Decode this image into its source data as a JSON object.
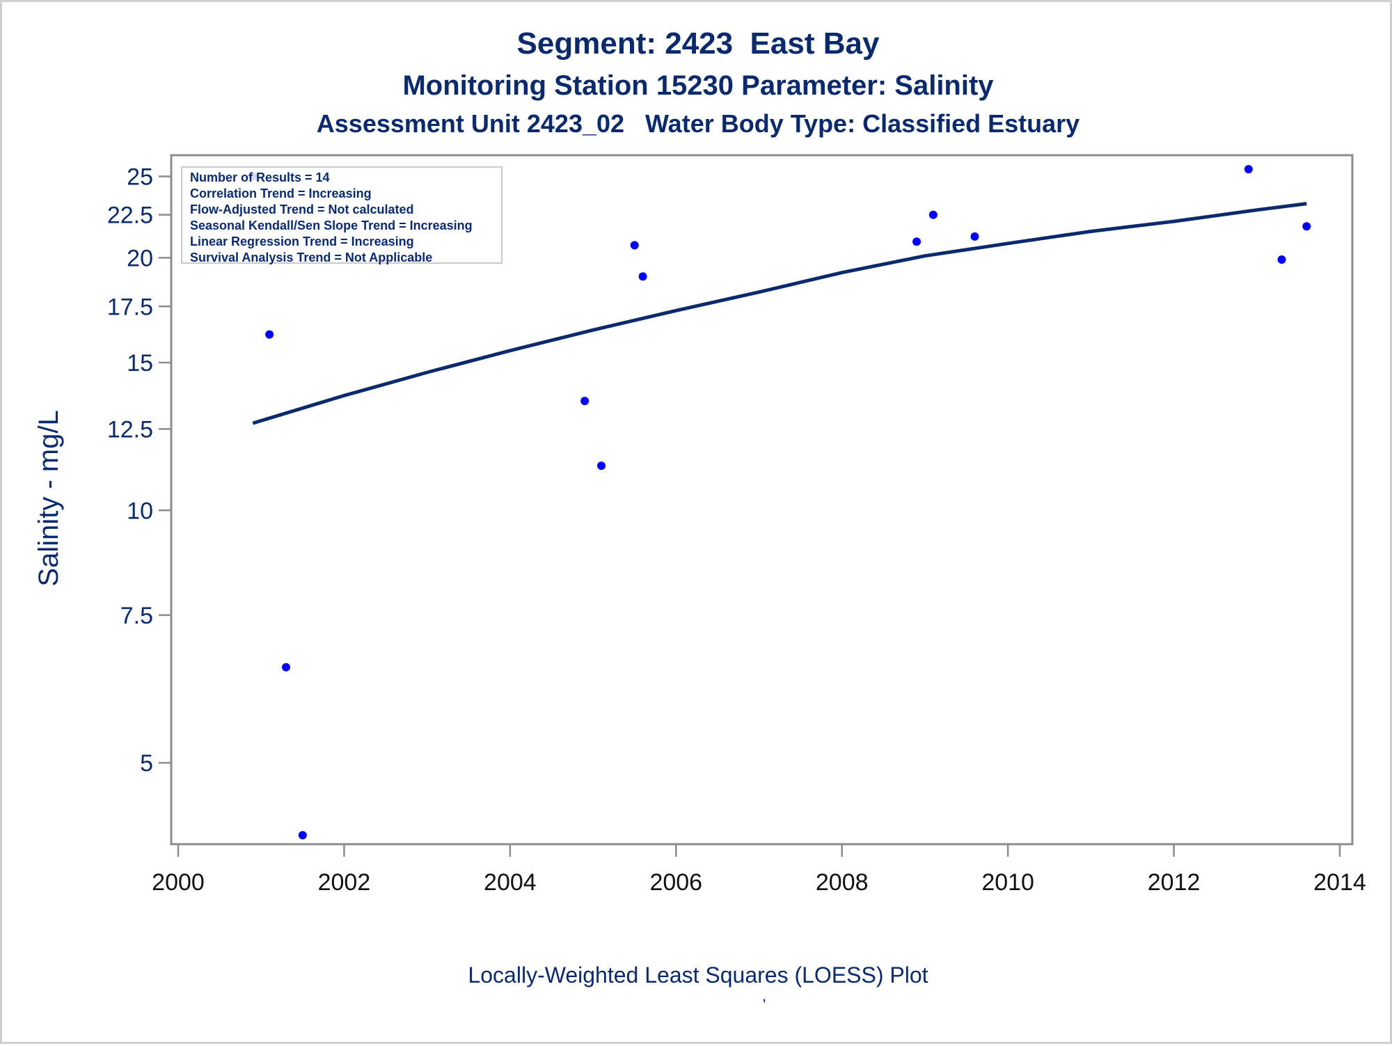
{
  "titles": {
    "line1": "Segment: 2423  East Bay",
    "line2": "Monitoring Station 15230 Parameter: Salinity",
    "line3": "Assessment Unit 2423_02   Water Body Type: Classified Estuary"
  },
  "stats": [
    "Number of Results = 14",
    "Correlation Trend = Increasing",
    "Flow-Adjusted Trend = Not calculated",
    "Seasonal Kendall/Sen Slope Trend = Increasing",
    "Linear Regression Trend = Increasing",
    "Survival Analysis Trend = Not Applicable"
  ],
  "footnote": "Locally-Weighted Least Squares (LOESS) Plot",
  "footnote_mark": "'",
  "colors": {
    "text": "#0b2a6e",
    "line": "#0b2a6e",
    "points": "#0000ff",
    "axis": "#8c8c8c"
  },
  "chart_data": {
    "type": "scatter",
    "ylabel": "Salinity - mg/L",
    "xlabel": "",
    "yscale": "log",
    "xlim": [
      2000,
      2014
    ],
    "ylim": [
      4.0,
      26.5
    ],
    "xticks": [
      2000,
      2002,
      2004,
      2006,
      2008,
      2010,
      2012,
      2014
    ],
    "yticks": [
      5,
      7.5,
      10,
      12.5,
      15,
      17.5,
      20,
      22.5,
      25
    ],
    "ytick_labels": [
      "5",
      "7.5",
      "10",
      "12.5",
      "15",
      "17.5",
      "20",
      "22.5",
      "25"
    ],
    "grid": false,
    "series": [
      {
        "type": "scatter",
        "points": [
          {
            "x": 2000.9,
            "y": 25.0
          },
          {
            "x": 2001.1,
            "y": 16.2
          },
          {
            "x": 2001.3,
            "y": 6.5
          },
          {
            "x": 2001.5,
            "y": 4.1
          },
          {
            "x": 2004.9,
            "y": 13.5
          },
          {
            "x": 2005.1,
            "y": 11.3
          },
          {
            "x": 2005.5,
            "y": 20.7
          },
          {
            "x": 2005.6,
            "y": 19.0
          },
          {
            "x": 2008.9,
            "y": 20.9
          },
          {
            "x": 2009.1,
            "y": 22.5
          },
          {
            "x": 2009.6,
            "y": 21.2
          },
          {
            "x": 2012.9,
            "y": 25.5
          },
          {
            "x": 2013.3,
            "y": 19.9
          },
          {
            "x": 2013.6,
            "y": 21.8
          }
        ]
      },
      {
        "type": "line",
        "points": [
          {
            "x": 2000.9,
            "y": 12.7
          },
          {
            "x": 2002.0,
            "y": 13.7
          },
          {
            "x": 2003.0,
            "y": 14.6
          },
          {
            "x": 2004.0,
            "y": 15.5
          },
          {
            "x": 2005.0,
            "y": 16.4
          },
          {
            "x": 2006.0,
            "y": 17.3
          },
          {
            "x": 2007.0,
            "y": 18.2
          },
          {
            "x": 2008.0,
            "y": 19.2
          },
          {
            "x": 2009.0,
            "y": 20.1
          },
          {
            "x": 2010.0,
            "y": 20.8
          },
          {
            "x": 2011.0,
            "y": 21.5
          },
          {
            "x": 2012.0,
            "y": 22.1
          },
          {
            "x": 2013.0,
            "y": 22.8
          },
          {
            "x": 2013.6,
            "y": 23.2
          }
        ]
      }
    ]
  }
}
